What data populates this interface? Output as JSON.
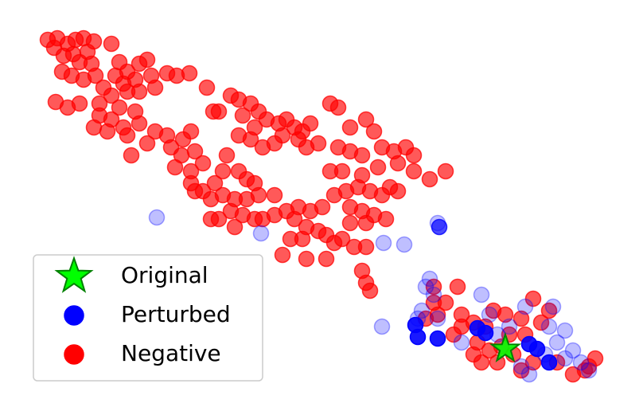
{
  "chart_data": {
    "type": "scatter",
    "xlim": [
      40,
      770
    ],
    "ylim": [
      490,
      30
    ],
    "legend": "lower left",
    "series": [
      {
        "name": "Original",
        "color": "#00ff00",
        "edgecolor": "#008000",
        "marker": "star",
        "alpha": 0.9,
        "x": [
          635
        ],
        "values": [
          438
        ]
      },
      {
        "name": "Perturbed",
        "color": "#0000ff",
        "marker": "circle",
        "x": [
          197,
          328,
          482,
          508,
          550,
          552,
          480,
          540,
          535,
          545,
          530,
          525,
          550,
          605,
          615,
          640,
          660,
          695,
          690,
          710,
          700,
          720,
          710,
          665,
          655,
          685,
          730,
          740,
          580,
          625,
          522,
          525,
          550,
          600,
          610,
          665,
          675,
          690
        ],
        "values": [
          273,
          293,
          305,
          307,
          280,
          285,
          410,
          350,
          360,
          370,
          390,
          400,
          400,
          370,
          395,
          410,
          385,
          385,
          410,
          415,
          430,
          440,
          450,
          470,
          460,
          445,
          455,
          465,
          430,
          420,
          408,
          423,
          425,
          412,
          418,
          432,
          438,
          455
        ],
        "alphas": [
          0.25,
          0.25,
          0.25,
          0.25,
          0.25,
          0.7,
          0.25,
          0.25,
          0.25,
          0.25,
          0.25,
          0.25,
          0.25,
          0.25,
          0.25,
          0.25,
          0.25,
          0.25,
          0.25,
          0.25,
          0.25,
          0.25,
          0.25,
          0.25,
          0.25,
          0.25,
          0.25,
          0.25,
          0.25,
          0.25,
          0.9,
          0.9,
          0.9,
          0.9,
          0.9,
          0.9,
          0.9,
          0.9
        ]
      },
      {
        "name": "Negative",
        "color": "#ff0000",
        "marker": "circle",
        "alpha": 0.65,
        "x": [
          60,
          72,
          68,
          85,
          95,
          105,
          118,
          140,
          80,
          92,
          110,
          100,
          115,
          78,
          90,
          105,
          120,
          150,
          160,
          175,
          185,
          145,
          155,
          170,
          190,
          210,
          222,
          238,
          130,
          140,
          160,
          175,
          195,
          70,
          85,
          100,
          125,
          150,
          170,
          125,
          140,
          118,
          135,
          155,
          175,
          160,
          165,
          185,
          195,
          210,
          215,
          230,
          240,
          228,
          245,
          220,
          240,
          255,
          260,
          268,
          275,
          290,
          300,
          315,
          325,
          305,
          320,
          335,
          350,
          360,
          370,
          380,
          390,
          300,
          315,
          330,
          345,
          355,
          375,
          385,
          400,
          415,
          425,
          440,
          460,
          470,
          425,
          440,
          455,
          480,
          495,
          510,
          520,
          500,
          520,
          540,
          560,
          475,
          455,
          430,
          415,
          285,
          280,
          300,
          310,
          270,
          255,
          245,
          265,
          280,
          295,
          310,
          325,
          345,
          290,
          305,
          320,
          275,
          295,
          330,
          345,
          360,
          375,
          390,
          405,
          420,
          435,
          450,
          465,
          480,
          490,
          500,
          370,
          385,
          400,
          410,
          440,
          455,
          470,
          485,
          460,
          440,
          430,
          445,
          460,
          420,
          365,
          380,
          355,
          385,
          410,
          455,
          460,
          465,
          545,
          560,
          575,
          580,
          595,
          610,
          620,
          635,
          640,
          655,
          660,
          670,
          690,
          680,
          600,
          615,
          595,
          605,
          625,
          645,
          655,
          535,
          545,
          550,
          570,
          670,
          700,
          720,
          735,
          748,
          740,
          265,
          320,
          240,
          580,
          630
        ],
        "values": [
          50,
          48,
          60,
          55,
          50,
          48,
          52,
          55,
          70,
          68,
          65,
          78,
          80,
          90,
          95,
          100,
          95,
          78,
          90,
          80,
          75,
          95,
          105,
          100,
          95,
          92,
          95,
          92,
          110,
          120,
          115,
          115,
          110,
          128,
          135,
          130,
          130,
          135,
          140,
          145,
          150,
          160,
          165,
          160,
          155,
          170,
          195,
          180,
          165,
          170,
          185,
          175,
          165,
          195,
          190,
          210,
          215,
          205,
          110,
          140,
          140,
          120,
          125,
          130,
          140,
          145,
          160,
          150,
          155,
          150,
          160,
          165,
          155,
          170,
          175,
          185,
          180,
          170,
          175,
          185,
          180,
          130,
          135,
          160,
          150,
          165,
          185,
          190,
          195,
          185,
          190,
          185,
          195,
          205,
          215,
          225,
          215,
          210,
          220,
          215,
          215,
          195,
          215,
          215,
          225,
          230,
          240,
          240,
          250,
          245,
          250,
          250,
          245,
          245,
          265,
          270,
          275,
          275,
          285,
          275,
          270,
          265,
          260,
          265,
          260,
          245,
          240,
          235,
          240,
          245,
          235,
          240,
          275,
          285,
          290,
          295,
          260,
          265,
          270,
          275,
          280,
          280,
          300,
          310,
          310,
          305,
          300,
          300,
          320,
          325,
          325,
          340,
          355,
          365,
          360,
          380,
          360,
          395,
          405,
          410,
          390,
          395,
          420,
          400,
          420,
          375,
          390,
          405,
          430,
          440,
          445,
          455,
          455,
          445,
          465,
          400,
          380,
          395,
          420,
          455,
          455,
          470,
          465,
          450,
          460,
          275,
          230,
          230,
          410,
          435
        ]
      }
    ]
  }
}
